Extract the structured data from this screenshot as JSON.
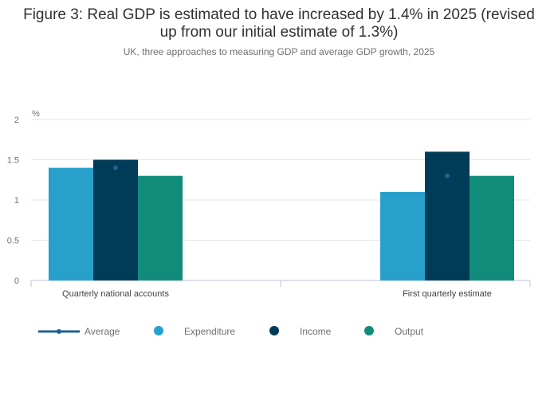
{
  "chart_data": {
    "type": "bar",
    "title": "Figure 3: Real GDP is estimated to have increased by 1.4% in 2025 (revised up from our initial estimate of 1.3%)",
    "subtitle": "UK, three approaches to measuring GDP and average GDP growth, 2025",
    "ylabel": "%",
    "ylim": [
      0,
      2
    ],
    "yticks": [
      "0",
      "0.5",
      "1",
      "1.5",
      "2"
    ],
    "categories": [
      "Quarterly national accounts",
      "First quarterly estimate"
    ],
    "series": [
      {
        "name": "Expenditure",
        "values": [
          1.4,
          1.1
        ],
        "color": "#27a0cc"
      },
      {
        "name": "Income",
        "values": [
          1.5,
          1.6
        ],
        "color": "#003c57"
      },
      {
        "name": "Output",
        "values": [
          1.3,
          1.3
        ],
        "color": "#118c7b"
      }
    ],
    "average": {
      "name": "Average",
      "values": [
        1.4,
        1.3
      ],
      "color": "#206095"
    },
    "grid": true,
    "legend": "bottom"
  }
}
